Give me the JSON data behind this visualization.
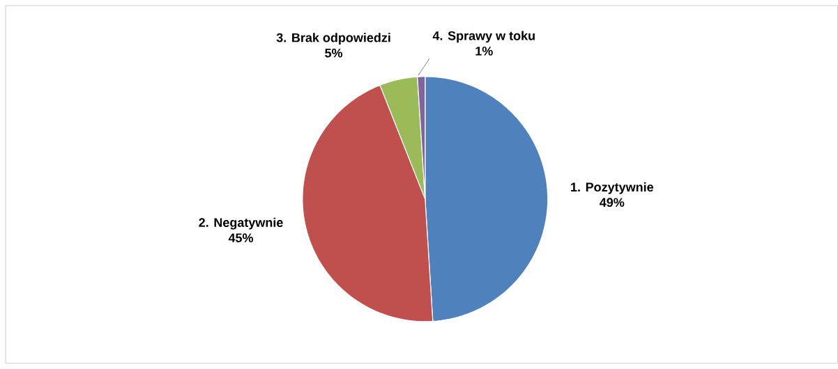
{
  "chart_data": {
    "type": "pie",
    "categories": [
      "1. Pozytywnie",
      "2. Negatywnie",
      "3. Brak odpowiedzi",
      "4. Sprawy w toku"
    ],
    "values": [
      49,
      45,
      5,
      1
    ],
    "value_labels": [
      "49%",
      "45%",
      "5%",
      "1%"
    ],
    "colors": [
      "#4f81bd",
      "#c0504d",
      "#9bbb59",
      "#8064a2"
    ]
  }
}
